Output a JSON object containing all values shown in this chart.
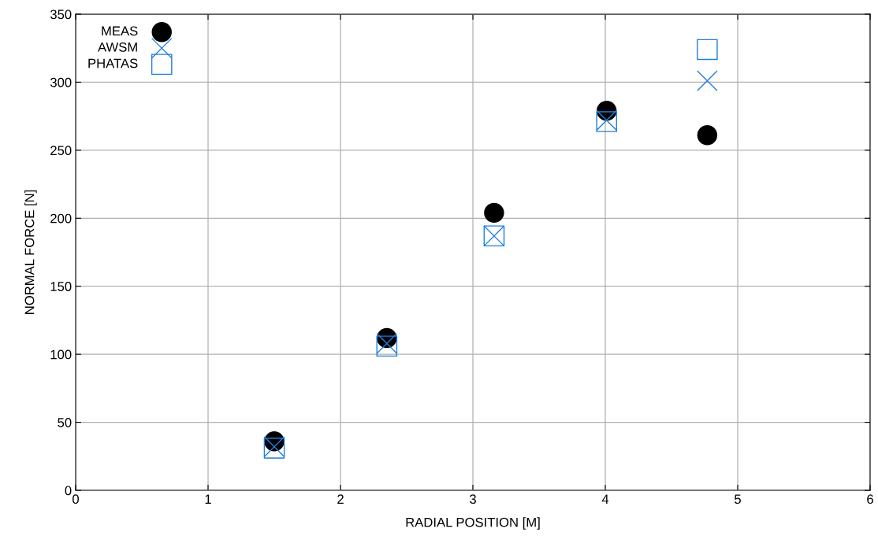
{
  "chart_data": {
    "type": "scatter",
    "xlabel": "RADIAL POSITION [M]",
    "ylabel": "NORMAL FORCE [N]",
    "xlim": [
      0,
      6
    ],
    "xticks": [
      0,
      1,
      2,
      3,
      4,
      5,
      6
    ],
    "ylim": [
      0,
      350
    ],
    "yticks": [
      0,
      50,
      100,
      150,
      200,
      250,
      300,
      350
    ],
    "grid": true,
    "legend": "top left",
    "series": [
      {
        "name": "MEAS",
        "color": "#000000",
        "marker": "circle",
        "x": [
          1.5,
          2.35,
          3.16,
          4.01,
          4.77
        ],
        "values": [
          36,
          112,
          204,
          279,
          261
        ]
      },
      {
        "name": "AWSM",
        "color": "#1f7fdf",
        "marker": "cross",
        "x": [
          1.5,
          2.35,
          3.16,
          4.01,
          4.77
        ],
        "values": [
          32,
          108,
          187,
          272,
          301
        ]
      },
      {
        "name": "PHATAS",
        "color": "#1f7fdf",
        "marker": "square",
        "x": [
          1.5,
          2.35,
          3.16,
          4.01,
          4.77
        ],
        "values": [
          31,
          106,
          187,
          271,
          324
        ]
      }
    ]
  }
}
